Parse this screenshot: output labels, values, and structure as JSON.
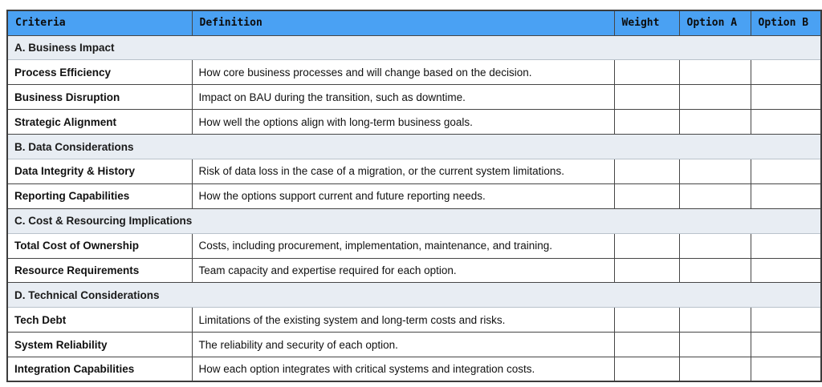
{
  "colors": {
    "header_bg": "#4aa1f3",
    "section_bg": "#e8edf3",
    "border_dark": "#464646",
    "border_light": "#b9c2cb"
  },
  "table": {
    "columns": [
      {
        "label": "Criteria"
      },
      {
        "label": "Definition"
      },
      {
        "label": "Weight"
      },
      {
        "label": "Option A"
      },
      {
        "label": "Option B"
      }
    ],
    "sections": [
      {
        "title": "A. Business Impact",
        "rows": [
          {
            "criteria": "Process Efficiency",
            "definition": "How core business processes and will change based on the decision.",
            "weight": "",
            "option_a": "",
            "option_b": ""
          },
          {
            "criteria": "Business Disruption",
            "definition": "Impact on BAU during the transition, such as downtime.",
            "weight": "",
            "option_a": "",
            "option_b": ""
          },
          {
            "criteria": "Strategic Alignment",
            "definition": "How well the options align with long-term business goals.",
            "weight": "",
            "option_a": "",
            "option_b": ""
          }
        ]
      },
      {
        "title": "B. Data Considerations",
        "rows": [
          {
            "criteria": "Data Integrity & History",
            "definition": "Risk of data loss in the case of a migration, or the current system limitations.",
            "weight": "",
            "option_a": "",
            "option_b": ""
          },
          {
            "criteria": "Reporting Capabilities",
            "definition": "How the options support current and future reporting needs.",
            "weight": "",
            "option_a": "",
            "option_b": ""
          }
        ]
      },
      {
        "title": "C. Cost & Resourcing Implications",
        "rows": [
          {
            "criteria": "Total Cost of Ownership",
            "definition": "Costs, including procurement, implementation, maintenance, and training.",
            "weight": "",
            "option_a": "",
            "option_b": ""
          },
          {
            "criteria": "Resource Requirements",
            "definition": "Team capacity and expertise required for each option.",
            "weight": "",
            "option_a": "",
            "option_b": ""
          }
        ]
      },
      {
        "title": "D. Technical Considerations",
        "rows": [
          {
            "criteria": "Tech Debt",
            "definition": "Limitations of the existing system and long-term costs and risks.",
            "weight": "",
            "option_a": "",
            "option_b": ""
          },
          {
            "criteria": "System Reliability",
            "definition": "The reliability and security of each option.",
            "weight": "",
            "option_a": "",
            "option_b": ""
          },
          {
            "criteria": "Integration Capabilities",
            "definition": "How each option integrates with critical systems and integration costs.",
            "weight": "",
            "option_a": "",
            "option_b": ""
          }
        ]
      }
    ]
  }
}
